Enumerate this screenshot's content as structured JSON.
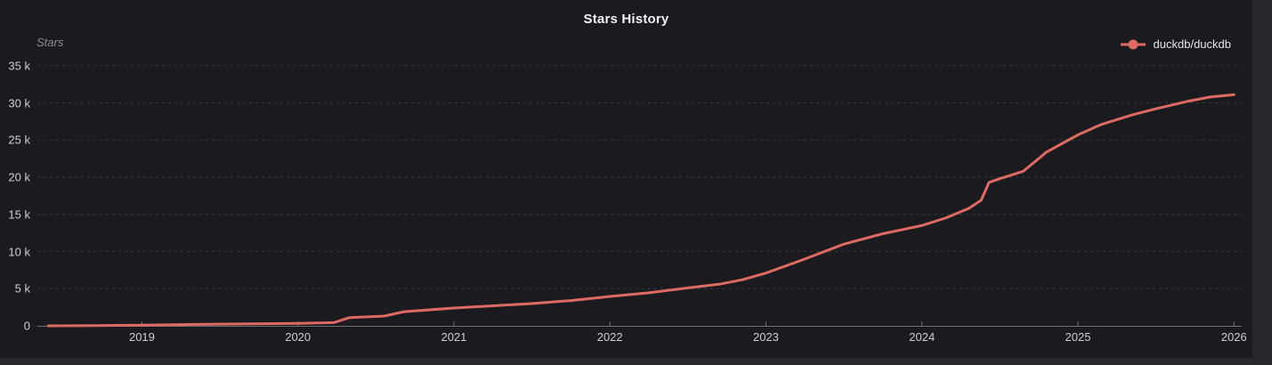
{
  "page": {
    "background": "#28282c"
  },
  "panel": {
    "background": "#1b1b1f"
  },
  "header": {
    "title": "Stars History"
  },
  "legend": {
    "items": [
      {
        "label": "duckdb/duckdb",
        "color": "#de6b63"
      }
    ]
  },
  "colors": {
    "accent_line": "#de6b63",
    "grid_line": "#3a3a3f",
    "axis_line": "#6f6f74",
    "tick_text": "#cfcfd3",
    "title_text": "#f1f1f3",
    "axis_title_text": "#8c8c92"
  },
  "chart_data": {
    "type": "line",
    "title": "Stars History",
    "xlabel": "",
    "ylabel": "Stars",
    "legend_position": "top-right",
    "grid": "horizontal dashed",
    "x_ticks": [
      "2019",
      "2020",
      "2021",
      "2022",
      "2023",
      "2024",
      "2025",
      "2026"
    ],
    "x_tick_values": [
      2019,
      2020,
      2021,
      2022,
      2023,
      2024,
      2025,
      2026
    ],
    "y_ticks": [
      "0",
      "5 k",
      "10 k",
      "15 k",
      "20 k",
      "25 k",
      "30 k",
      "35 k"
    ],
    "y_tick_values": [
      0,
      5000,
      10000,
      15000,
      20000,
      25000,
      30000,
      35000
    ],
    "xlim": [
      2018.33,
      2026.05
    ],
    "ylim": [
      0,
      36500
    ],
    "series": [
      {
        "name": "duckdb/duckdb",
        "color": "#de6b63",
        "points": [
          [
            2018.4,
            0
          ],
          [
            2018.7,
            30
          ],
          [
            2019.0,
            80
          ],
          [
            2019.4,
            200
          ],
          [
            2019.7,
            280
          ],
          [
            2020.0,
            330
          ],
          [
            2020.23,
            430
          ],
          [
            2020.33,
            1100
          ],
          [
            2020.55,
            1300
          ],
          [
            2020.68,
            1900
          ],
          [
            2021.0,
            2400
          ],
          [
            2021.25,
            2700
          ],
          [
            2021.5,
            3000
          ],
          [
            2021.75,
            3400
          ],
          [
            2022.0,
            3950
          ],
          [
            2022.25,
            4450
          ],
          [
            2022.5,
            5100
          ],
          [
            2022.7,
            5600
          ],
          [
            2022.85,
            6200
          ],
          [
            2023.0,
            7100
          ],
          [
            2023.25,
            9000
          ],
          [
            2023.5,
            11000
          ],
          [
            2023.75,
            12400
          ],
          [
            2024.0,
            13500
          ],
          [
            2024.15,
            14500
          ],
          [
            2024.3,
            15800
          ],
          [
            2024.38,
            16900
          ],
          [
            2024.43,
            19300
          ],
          [
            2024.5,
            19800
          ],
          [
            2024.65,
            20800
          ],
          [
            2024.8,
            23400
          ],
          [
            2025.0,
            25700
          ],
          [
            2025.15,
            27100
          ],
          [
            2025.35,
            28400
          ],
          [
            2025.5,
            29200
          ],
          [
            2025.7,
            30200
          ],
          [
            2025.85,
            30800
          ],
          [
            2026.0,
            31100
          ]
        ]
      }
    ]
  }
}
